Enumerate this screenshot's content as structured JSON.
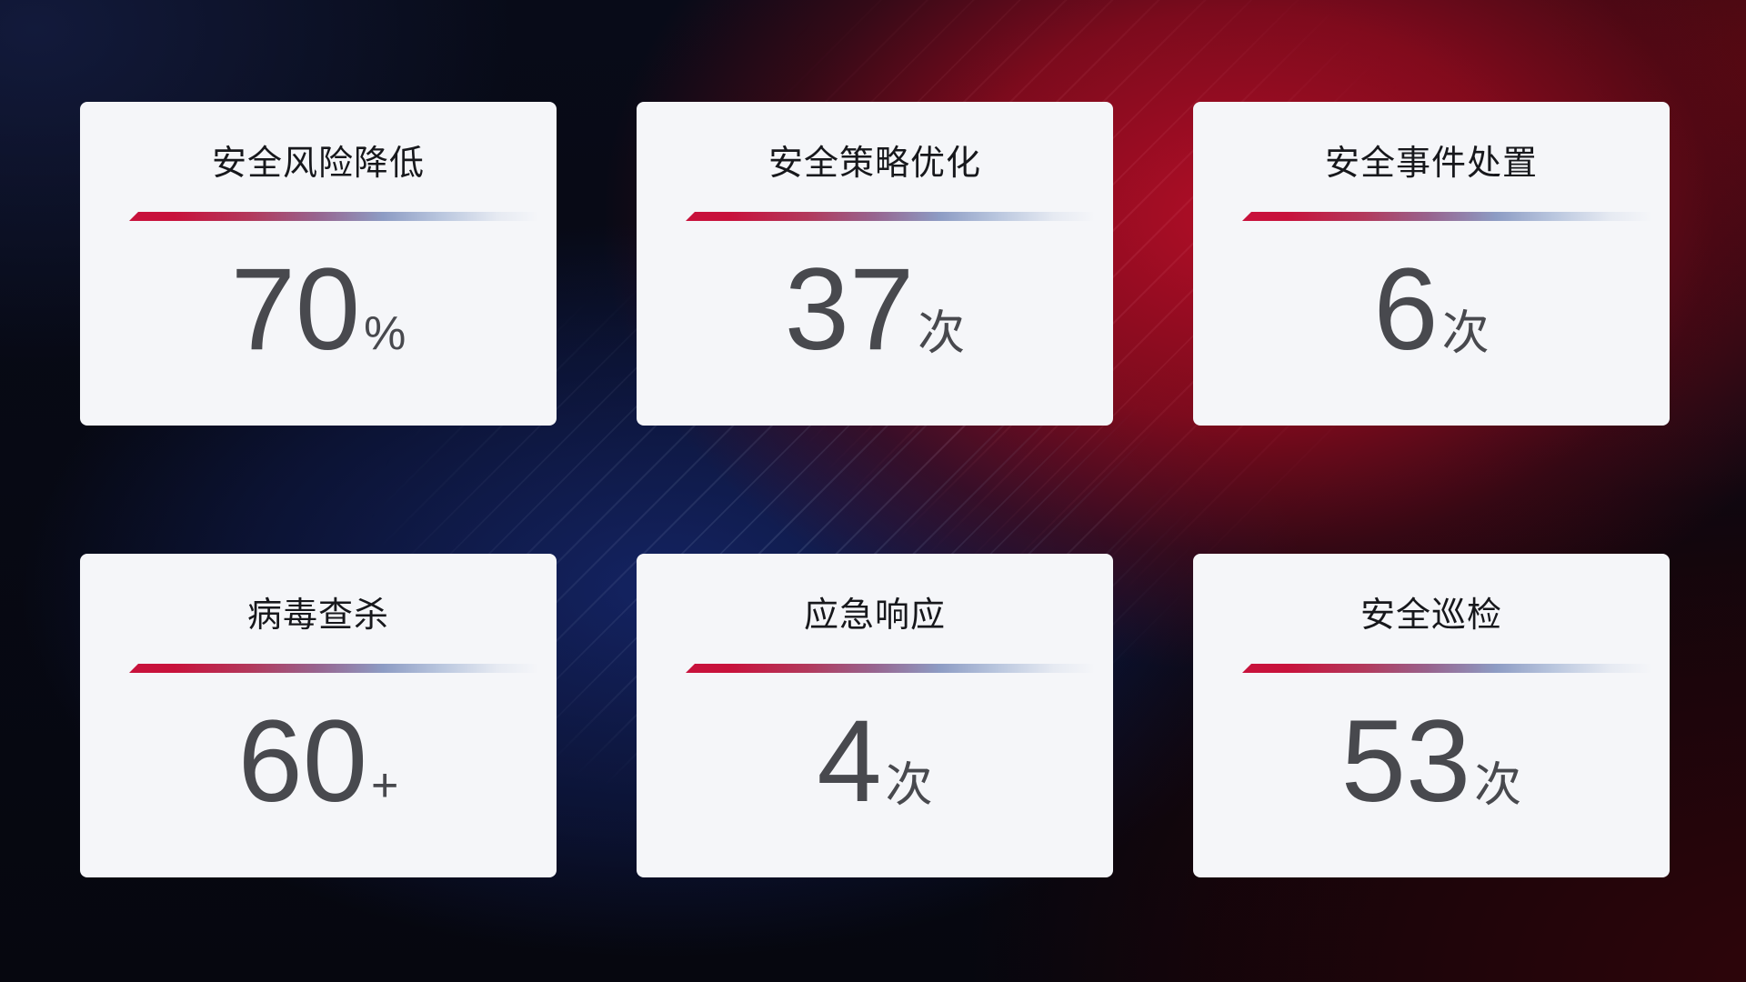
{
  "cards": [
    {
      "title": "安全风险降低",
      "value": "70",
      "unit": "%"
    },
    {
      "title": "安全策略优化",
      "value": "37",
      "unit": "次"
    },
    {
      "title": "安全事件处置",
      "value": "6",
      "unit": "次"
    },
    {
      "title": "病毒查杀",
      "value": "60",
      "unit": "+"
    },
    {
      "title": "应急响应",
      "value": "4",
      "unit": "次"
    },
    {
      "title": "安全巡检",
      "value": "53",
      "unit": "次"
    }
  ],
  "colors": {
    "accent-red": "#c8123c",
    "accent-blue": "#8d9cc4",
    "card-bg": "#f5f6f9",
    "title-color": "#17181c",
    "number-color": "#48494e"
  }
}
